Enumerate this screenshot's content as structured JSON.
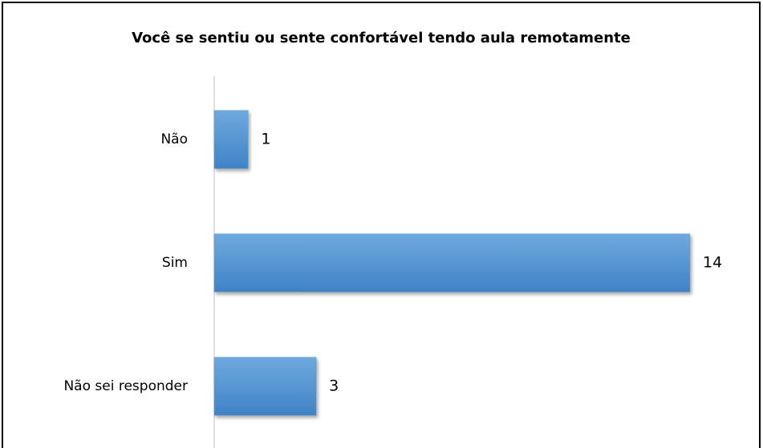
{
  "chart_data": {
    "type": "bar",
    "orientation": "horizontal",
    "title": "Você se sentiu ou sente confortável tendo aula remotamente",
    "categories": [
      "Não",
      "Sim",
      "Não sei responder"
    ],
    "values": [
      1,
      14,
      3
    ],
    "color": "#5b9bd5"
  }
}
